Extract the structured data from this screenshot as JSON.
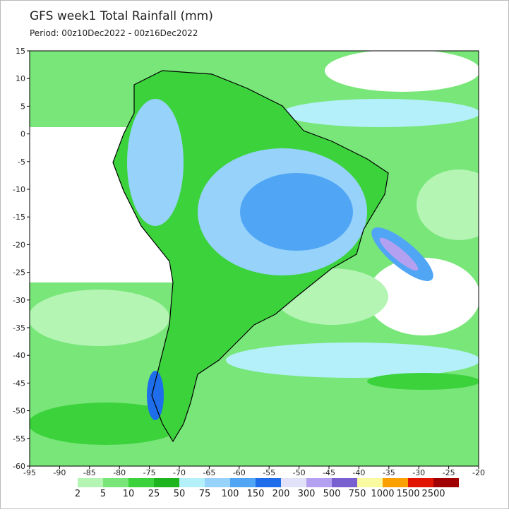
{
  "title": "GFS week1 Total Rainfall (mm)",
  "subtitle": "Period: 00z10Dec2022 - 00z16Dec2022",
  "map": {
    "xlim": [
      -95,
      -20
    ],
    "ylim": [
      -60,
      15
    ],
    "xticks": [
      -95,
      -90,
      -85,
      -80,
      -75,
      -70,
      -65,
      -60,
      -55,
      -50,
      -45,
      -40,
      -35,
      -30,
      -25,
      -20
    ],
    "yticks": [
      15,
      10,
      5,
      0,
      -5,
      -10,
      -15,
      -20,
      -25,
      -30,
      -35,
      -40,
      -45,
      -50,
      -55,
      -60
    ]
  },
  "colorbar": {
    "levels": [
      2,
      5,
      10,
      25,
      50,
      75,
      100,
      150,
      200,
      300,
      500,
      750,
      1000,
      1500,
      2500
    ],
    "colors": [
      "#b4f5b4",
      "#78e678",
      "#3cd23c",
      "#1eb41e",
      "#b4f0fa",
      "#96d2fa",
      "#50a5f5",
      "#1e6eeb",
      "#e1e1fa",
      "#b4a0f0",
      "#7860d0",
      "#fafaa0",
      "#faa000",
      "#e11400",
      "#a00000",
      "#e6a0a0",
      "#fadcdc"
    ]
  }
}
